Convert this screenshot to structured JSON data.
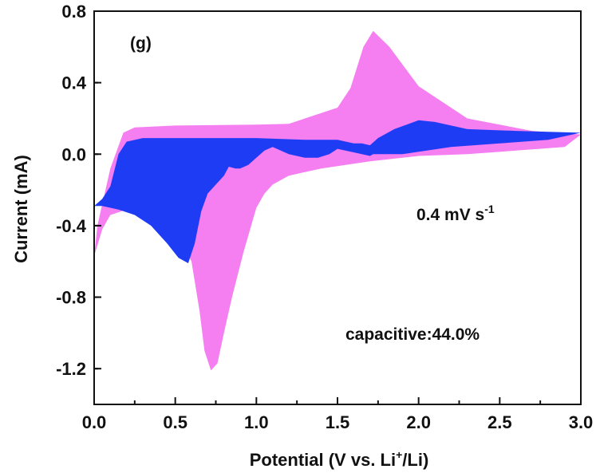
{
  "chart_data": {
    "type": "area",
    "panel_label": "(g)",
    "xlabel_parts": {
      "pre": "Potential (V vs. Li",
      "sup": "+",
      "post": "/Li)"
    },
    "ylabel": "Current (mA)",
    "xlim": [
      0.0,
      3.0
    ],
    "ylim": [
      -1.4,
      0.8
    ],
    "x_ticks": [
      "0.0",
      "0.5",
      "1.0",
      "1.5",
      "2.0",
      "2.5",
      "3.0"
    ],
    "y_ticks": [
      "0.8",
      "0.4",
      "0.0",
      "-0.4",
      "-0.8",
      "-1.2"
    ],
    "grid": false,
    "annotations": {
      "scan_rate": {
        "text": "0.4 mV s",
        "sup": "-1"
      },
      "capacitive": {
        "text": "capacitive:44.0%"
      }
    },
    "colors": {
      "total": "#f57ef1",
      "capacitive": "#1f3cf5",
      "axis": "#111111"
    },
    "series": [
      {
        "points": [
          [
            0.0,
            -0.57
          ],
          [
            0.02,
            -0.4
          ],
          [
            0.1,
            -0.08
          ],
          [
            0.18,
            0.12
          ],
          [
            0.25,
            0.15
          ],
          [
            0.5,
            0.16
          ],
          [
            1.0,
            0.165
          ],
          [
            1.2,
            0.17
          ],
          [
            1.5,
            0.26
          ],
          [
            1.58,
            0.37
          ],
          [
            1.66,
            0.6
          ],
          [
            1.72,
            0.69
          ],
          [
            1.82,
            0.6
          ],
          [
            2.0,
            0.38
          ],
          [
            2.3,
            0.2
          ],
          [
            2.7,
            0.13
          ],
          [
            3.0,
            0.11
          ],
          [
            2.9,
            0.04
          ],
          [
            2.6,
            0.02
          ],
          [
            2.3,
            0.0
          ],
          [
            2.0,
            -0.01
          ],
          [
            1.7,
            -0.04
          ],
          [
            1.4,
            -0.08
          ],
          [
            1.2,
            -0.12
          ],
          [
            1.1,
            -0.17
          ],
          [
            1.05,
            -0.22
          ],
          [
            1.0,
            -0.3
          ],
          [
            0.92,
            -0.55
          ],
          [
            0.85,
            -0.8
          ],
          [
            0.8,
            -1.0
          ],
          [
            0.76,
            -1.17
          ],
          [
            0.72,
            -1.21
          ],
          [
            0.68,
            -1.1
          ],
          [
            0.65,
            -0.88
          ],
          [
            0.6,
            -0.6
          ],
          [
            0.5,
            -0.43
          ],
          [
            0.4,
            -0.36
          ],
          [
            0.3,
            -0.33
          ],
          [
            0.2,
            -0.31
          ],
          [
            0.1,
            -0.34
          ],
          [
            0.05,
            -0.42
          ],
          [
            0.0,
            -0.57
          ]
        ]
      },
      {
        "points": [
          [
            0.0,
            -0.29
          ],
          [
            0.05,
            -0.25
          ],
          [
            0.1,
            -0.18
          ],
          [
            0.15,
            0.0
          ],
          [
            0.2,
            0.07
          ],
          [
            0.3,
            0.09
          ],
          [
            0.6,
            0.09
          ],
          [
            1.0,
            0.09
          ],
          [
            1.3,
            0.08
          ],
          [
            1.5,
            0.08
          ],
          [
            1.6,
            0.06
          ],
          [
            1.65,
            0.06
          ],
          [
            1.7,
            0.05
          ],
          [
            1.75,
            0.09
          ],
          [
            1.85,
            0.14
          ],
          [
            2.0,
            0.19
          ],
          [
            2.1,
            0.18
          ],
          [
            2.3,
            0.14
          ],
          [
            2.6,
            0.13
          ],
          [
            3.0,
            0.12
          ],
          [
            2.8,
            0.08
          ],
          [
            2.5,
            0.06
          ],
          [
            2.2,
            0.04
          ],
          [
            1.9,
            0.0
          ],
          [
            1.72,
            0.0
          ],
          [
            1.7,
            -0.01
          ],
          [
            1.6,
            0.01
          ],
          [
            1.5,
            0.03
          ],
          [
            1.45,
            0.0
          ],
          [
            1.38,
            -0.02
          ],
          [
            1.3,
            -0.02
          ],
          [
            1.2,
            0.0
          ],
          [
            1.1,
            0.04
          ],
          [
            1.05,
            0.02
          ],
          [
            1.0,
            -0.02
          ],
          [
            0.95,
            -0.06
          ],
          [
            0.9,
            -0.08
          ],
          [
            0.87,
            -0.08
          ],
          [
            0.83,
            -0.07
          ],
          [
            0.8,
            -0.12
          ],
          [
            0.74,
            -0.18
          ],
          [
            0.7,
            -0.22
          ],
          [
            0.66,
            -0.32
          ],
          [
            0.62,
            -0.5
          ],
          [
            0.58,
            -0.61
          ],
          [
            0.52,
            -0.58
          ],
          [
            0.45,
            -0.5
          ],
          [
            0.35,
            -0.4
          ],
          [
            0.25,
            -0.34
          ],
          [
            0.15,
            -0.31
          ],
          [
            0.05,
            -0.29
          ],
          [
            0.0,
            -0.29
          ]
        ]
      }
    ]
  }
}
